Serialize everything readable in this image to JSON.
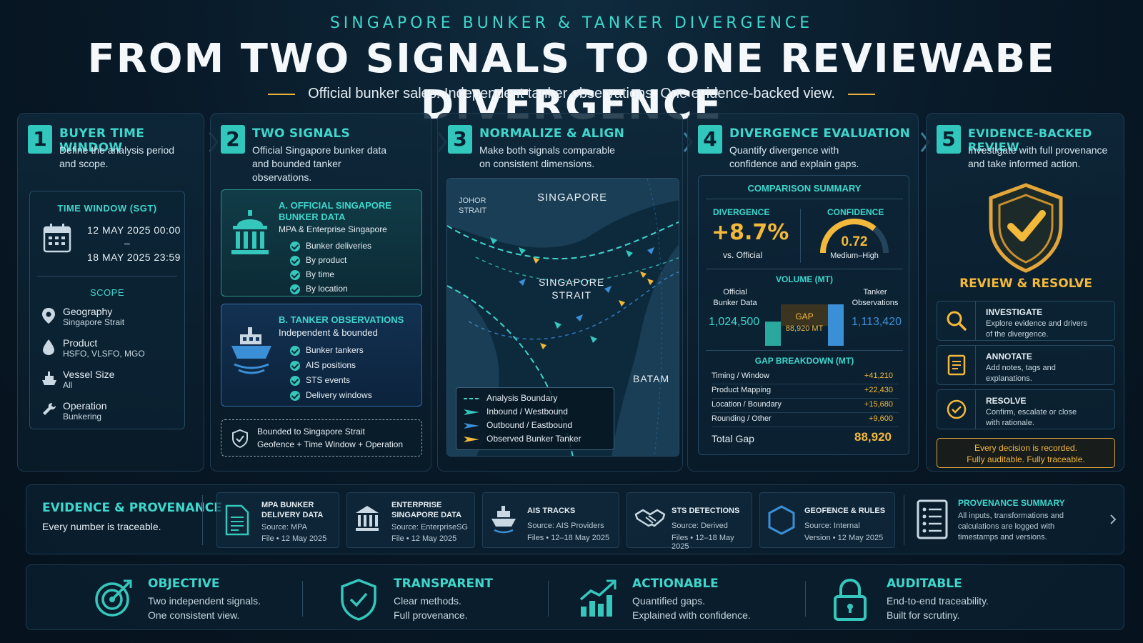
{
  "header": {
    "kicker": "SINGAPORE BUNKER & TANKER DIVERGENCE",
    "title": "FROM TWO SIGNALS TO ONE REVIEWABE DIVERGENCE",
    "subtitle": "Official bunker sales. Independent tanker observations. One evidence-backed view."
  },
  "steps": [
    {
      "num": "1",
      "title": "BUYER TIME WINDOW",
      "desc1": "Define the analysis period",
      "desc2": "and scope."
    },
    {
      "num": "2",
      "title": "TWO SIGNALS",
      "desc1": "Official Singapore bunker data",
      "desc2": "and bounded tanker",
      "desc3": "observations."
    },
    {
      "num": "3",
      "title": "NORMALIZE & ALIGN",
      "desc1": "Make both signals comparable",
      "desc2": "on consistent dimensions."
    },
    {
      "num": "4",
      "title": "DIVERGENCE EVALUATION",
      "desc1": "Quantify divergence with",
      "desc2": "confidence and explain gaps."
    },
    {
      "num": "5",
      "title": "EVIDENCE-BACKED REVIEW",
      "desc1": "Investigate with full provenance",
      "desc2": "and take informed action."
    }
  ],
  "window": {
    "label": "TIME WINDOW (SGT)",
    "start": "12 MAY 2025 00:00",
    "sep": "–",
    "end": "18 MAY 2025 23:59",
    "scope_label": "SCOPE",
    "scope": [
      {
        "icon": "location-pin-icon",
        "name": "Geography",
        "value": "Singapore Strait"
      },
      {
        "icon": "droplet-icon",
        "name": "Product",
        "value": "HSFO, VLSFO, MGO"
      },
      {
        "icon": "ship-icon",
        "name": "Vessel Size",
        "value": "All"
      },
      {
        "icon": "wrench-icon",
        "name": "Operation",
        "value": "Bunkering"
      }
    ]
  },
  "signals": {
    "a_title1": "A. OFFICIAL SINGAPORE",
    "a_title2": "BUNKER DATA",
    "a_sub": "MPA & Enterprise Singapore",
    "a_items": [
      "Bunker deliveries",
      "By product",
      "By time",
      "By location"
    ],
    "b_title": "B. TANKER OBSERVATIONS",
    "b_sub": "Independent & bounded",
    "b_items": [
      "Bunker tankers",
      "AIS positions",
      "STS events",
      "Delivery windows"
    ],
    "bound1": "Bounded to Singapore Strait",
    "bound2": "Geofence + Time Window + Operation"
  },
  "map": {
    "johor1": "JOHOR",
    "johor2": "STRAIT",
    "singapore": "SINGAPORE",
    "strait1": "SINGAPORE",
    "strait2": "STRAIT",
    "batam": "BATAM",
    "legend": [
      "Analysis Boundary",
      "Inbound / Westbound",
      "Outbound / Eastbound",
      "Observed Bunker Tanker"
    ]
  },
  "comparison": {
    "title": "COMPARISON SUMMARY",
    "divergence_label": "DIVERGENCE",
    "divergence": "+8.7%",
    "divergence_sub": "vs. Official",
    "confidence_label": "CONFIDENCE",
    "confidence": "0.72",
    "confidence_sub": "Medium–High",
    "volume_label": "VOLUME (MT)",
    "official_label1": "Official",
    "official_label2": "Bunker Data",
    "official_value": "1,024,500",
    "tanker_label1": "Tanker",
    "tanker_label2": "Observations",
    "tanker_value": "1,113,420",
    "gap_label": "GAP",
    "gap_value": "88,920 MT",
    "breakdown_label": "GAP BREAKDOWN (MT)",
    "breakdown": [
      {
        "name": "Timing / Window",
        "value": "+41,210"
      },
      {
        "name": "Product Mapping",
        "value": "+22,430"
      },
      {
        "name": "Location / Boundary",
        "value": "+15,680"
      },
      {
        "name": "Rounding / Other",
        "value": "+9,600"
      }
    ],
    "total_label": "Total Gap",
    "total_value": "88,920"
  },
  "review": {
    "label": "REVIEW & RESOLVE",
    "actions": [
      {
        "icon": "search-icon",
        "title": "INVESTIGATE",
        "d1": "Explore evidence and drivers",
        "d2": "of the divergence."
      },
      {
        "icon": "note-icon",
        "title": "ANNOTATE",
        "d1": "Add notes, tags and",
        "d2": "explanations."
      },
      {
        "icon": "check-circle-icon",
        "title": "RESOLVE",
        "d1": "Confirm, escalate or close",
        "d2": "with rationale."
      }
    ],
    "audit1": "Every decision is recorded.",
    "audit2": "Fully auditable. Fully traceable."
  },
  "evidence": {
    "title": "EVIDENCE & PROVENANCE",
    "sub": "Every number is traceable.",
    "cards": [
      {
        "h1": "MPA BUNKER",
        "h2": "DELIVERY DATA",
        "s1": "Source: MPA",
        "s2": "File • 12 May 2025"
      },
      {
        "h1": "ENTERPRISE",
        "h2": "SINGAPORE DATA",
        "s1": "Source: EnterpriseSG",
        "s2": "File • 12 May 2025"
      },
      {
        "h1": "AIS TRACKS",
        "h2": "",
        "s1": "Source: AIS Providers",
        "s2": "Files • 12–18 May 2025"
      },
      {
        "h1": "STS DETECTIONS",
        "h2": "",
        "s1": "Source: Derived",
        "s2": "Files • 12–18 May 2025"
      },
      {
        "h1": "GEOFENCE & RULES",
        "h2": "",
        "s1": "Source: Internal",
        "s2": "Version • 12 May 2025"
      }
    ],
    "prov_title": "PROVENANCE SUMMARY",
    "prov1": "All inputs, transformations and",
    "prov2": "calculations are logged with",
    "prov3": "timestamps and versions."
  },
  "principles": [
    {
      "title": "OBJECTIVE",
      "d1": "Two independent signals.",
      "d2": "One consistent view."
    },
    {
      "title": "TRANSPARENT",
      "d1": "Clear methods.",
      "d2": "Full provenance."
    },
    {
      "title": "ACTIONABLE",
      "d1": "Quantified gaps.",
      "d2": "Explained with confidence."
    },
    {
      "title": "AUDITABLE",
      "d1": "End-to-end traceability.",
      "d2": "Built for scrutiny."
    }
  ],
  "colors": {
    "teal": "#3fd6cc",
    "gold": "#f3b93a",
    "background": "#081826"
  }
}
